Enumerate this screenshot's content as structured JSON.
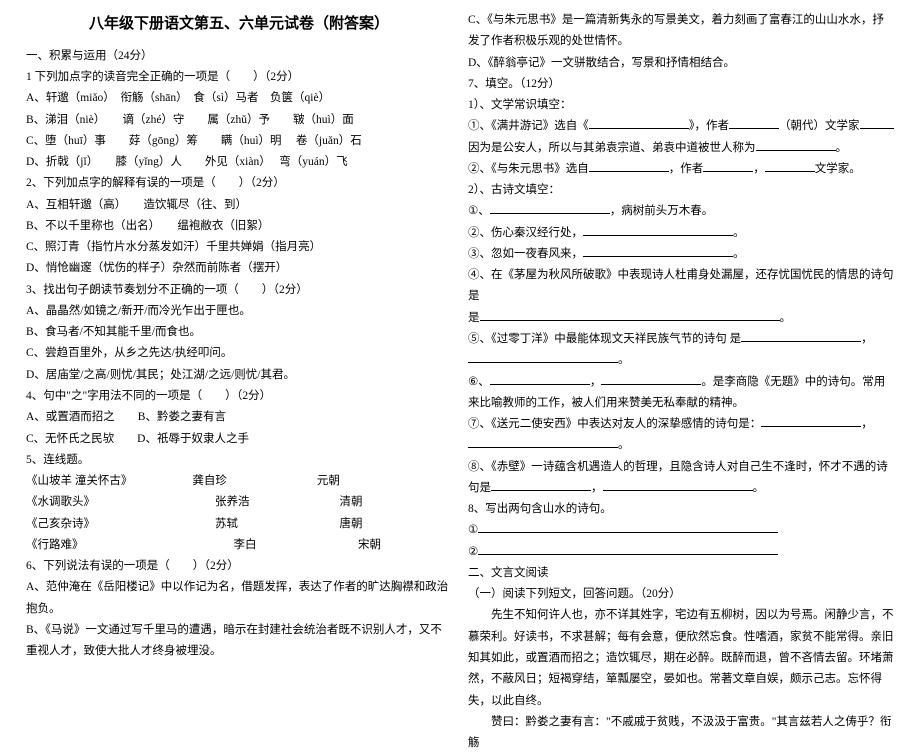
{
  "title": "八年级下册语文第五、六单元试卷（附答案）",
  "left": {
    "h1": "一、积累与运用（24分）",
    "q1": "1 下列加点字的读音完全正确的一项是（　　）（2分）",
    "q1a": "A、轩邈（miǎo）　衔觞（shān）　食（sì）马者　负箧（qiè）",
    "q1b": "B、涕泪（niè）　　谪（zhé）守　　属（zhǔ）予　　皲（huì）面",
    "q1c": "C、堕（huī）事　　䒵（gōng）筹　　瞒（huì）明　 卷（juǎn）石",
    "q1d": "D、折戟（jǐ）　　膝（yǐng）人　　外见（xiàn）　 弯（yuán）飞",
    "q2": "2、下列加点字的解释有误的一项是（　　）（2分）",
    "q2a": "A、互相轩邈（高）　　造饮辄尽（往、到）",
    "q2b": "B、不以千里称也（出名）　　缊袍敝衣（旧絮）",
    "q2c": "C、照汀青（指竹片水分蒸发如汗）千里共婵娟（指月亮）",
    "q2d": "D、悄怆幽邃（忧伤的样子）杂然而前陈者（摆开）",
    "q3": "3、找出句子朗读节奏划分不正确的一项（　　）（2分）",
    "q3a": "A、晶晶然/如镜之/新开/而冷光乍出于匣也。",
    "q3b": "B、食马者/不知其能千里/而食也。",
    "q3c": "C、尝趋百里外，从乡之先达/执经叩问。",
    "q3d": "D、居庙堂/之高/则忧/其民；处江湖/之远/则忧/其君。",
    "q4": "4、句中\"之\"字用法不同的一项是（　　）（2分）",
    "q4a": "A、或置酒而招之　　B、黔娄之妻有言",
    "q4c": "C、无怀氏之民欤　　D、祇辱于奴隶人之手",
    "q5": "5、连线题。",
    "q5r1a": "《山坡羊 潼关怀古》",
    "q5r1b": "龚自珍",
    "q5r1c": "元朝",
    "q5r2a": "《水调歌头》",
    "q5r2b": "张养浩",
    "q5r2c": "清朝",
    "q5r3a": "《己亥杂诗》",
    "q5r3b": "苏轼",
    "q5r3c": "唐朝",
    "q5r4a": "《行路难》",
    "q5r4b": "李白",
    "q5r4c": "宋朝",
    "q6": "6、下列说法有误的一项是（　　）（2分）",
    "q6a": "A、范仲淹在《岳阳楼记》中以作记为名，借题发挥，表达了作者的旷达胸襟和政治抱负。",
    "q6b": "B、《马说》一文通过写千里马的遭遇，暗示在封建社会统治者既不识别人才，又不重视人才，致使大批人才终身被埋没。"
  },
  "right": {
    "rc": "C、《与朱元思书》是一篇清新隽永的写景美文，着力刻画了富春江的山山水水，抒发了作者积极乐观的处世情怀。",
    "rd": "D、《醉翁亭记》一文骈散结合，写景和抒情相结合。",
    "q7": "7、填空。（12分）",
    "q7_1": "1）、文学常识填空：",
    "q7_1a_pre": "①、《满井游记》选自《",
    "q7_1a_mid": "》，作者",
    "q7_1a_mid2": "（朝代）文学家",
    "q7_1a_end": "。",
    "q7_1a2": "因为是公安人，所以与其弟袁宗道、弟袁中道被世人称为",
    "q7_1b_pre": "②、《与朱元思书》选自",
    "q7_1b_mid": "，作者",
    "q7_1b_mid2": "，",
    "q7_1b_end": "文学家。",
    "q7_2": "2）、古诗文填空：",
    "q7_2_1_pre": "①、",
    "q7_2_1_end": "，病树前头万木春。",
    "q7_2_2_pre": "②、伤心秦汉经行处，",
    "q7_2_3_pre": "③、忽如一夜春风来，",
    "q7_2_4": "④、在《茅屋为秋风所破歌》中表现诗人杜甫身处漏屋，还存忧国忧民的情思的诗句是",
    "q7_2_5_pre": "⑤、《过零丁洋》中最能体现文天祥民族气节的诗句 是",
    "q7_2_6_pre": "⑥、",
    "q7_2_6_end": "。是李商隐《无题》中的诗句。常用来比喻教师的工作，被人们用来赞美无私奉献的精神。",
    "q7_2_7_pre": "⑦、《送元二使安西》中表达对友人的深挚感情的诗句是：",
    "q7_2_8": "⑧、《赤壁》一诗蕴含机遇造人的哲理，且隐含诗人对自己生不逢时，怀才不遇的诗句是",
    "q8": "8、写出两句含山水的诗句。",
    "q8_1": "①",
    "q8_2": "②",
    "h2": "二、文言文阅读",
    "h2_1": "（一）阅读下列短文，回答问题。（20分）",
    "passage1": "　　先生不知何许人也，亦不详其姓字，宅边有五柳树，因以为号焉。闲静少言，不慕荣利。好读书，不求甚解；每有会意，便欣然忘食。性嗜酒，家贫不能常得。亲旧知其如此，或置酒而招之；造饮辄尽，期在必醉。既醉而退，曾不吝情去留。环堵萧然，不蔽风日；短褐穿结，箪瓢屡空，晏如也。常著文章自娱，颇示己志。忘怀得失，以此自终。",
    "passage2": "　　赞曰：黔娄之妻有言：\"不戚戚于贫贱，不汲汲于富贵。\"其言兹若人之俦乎？衔觞"
  }
}
